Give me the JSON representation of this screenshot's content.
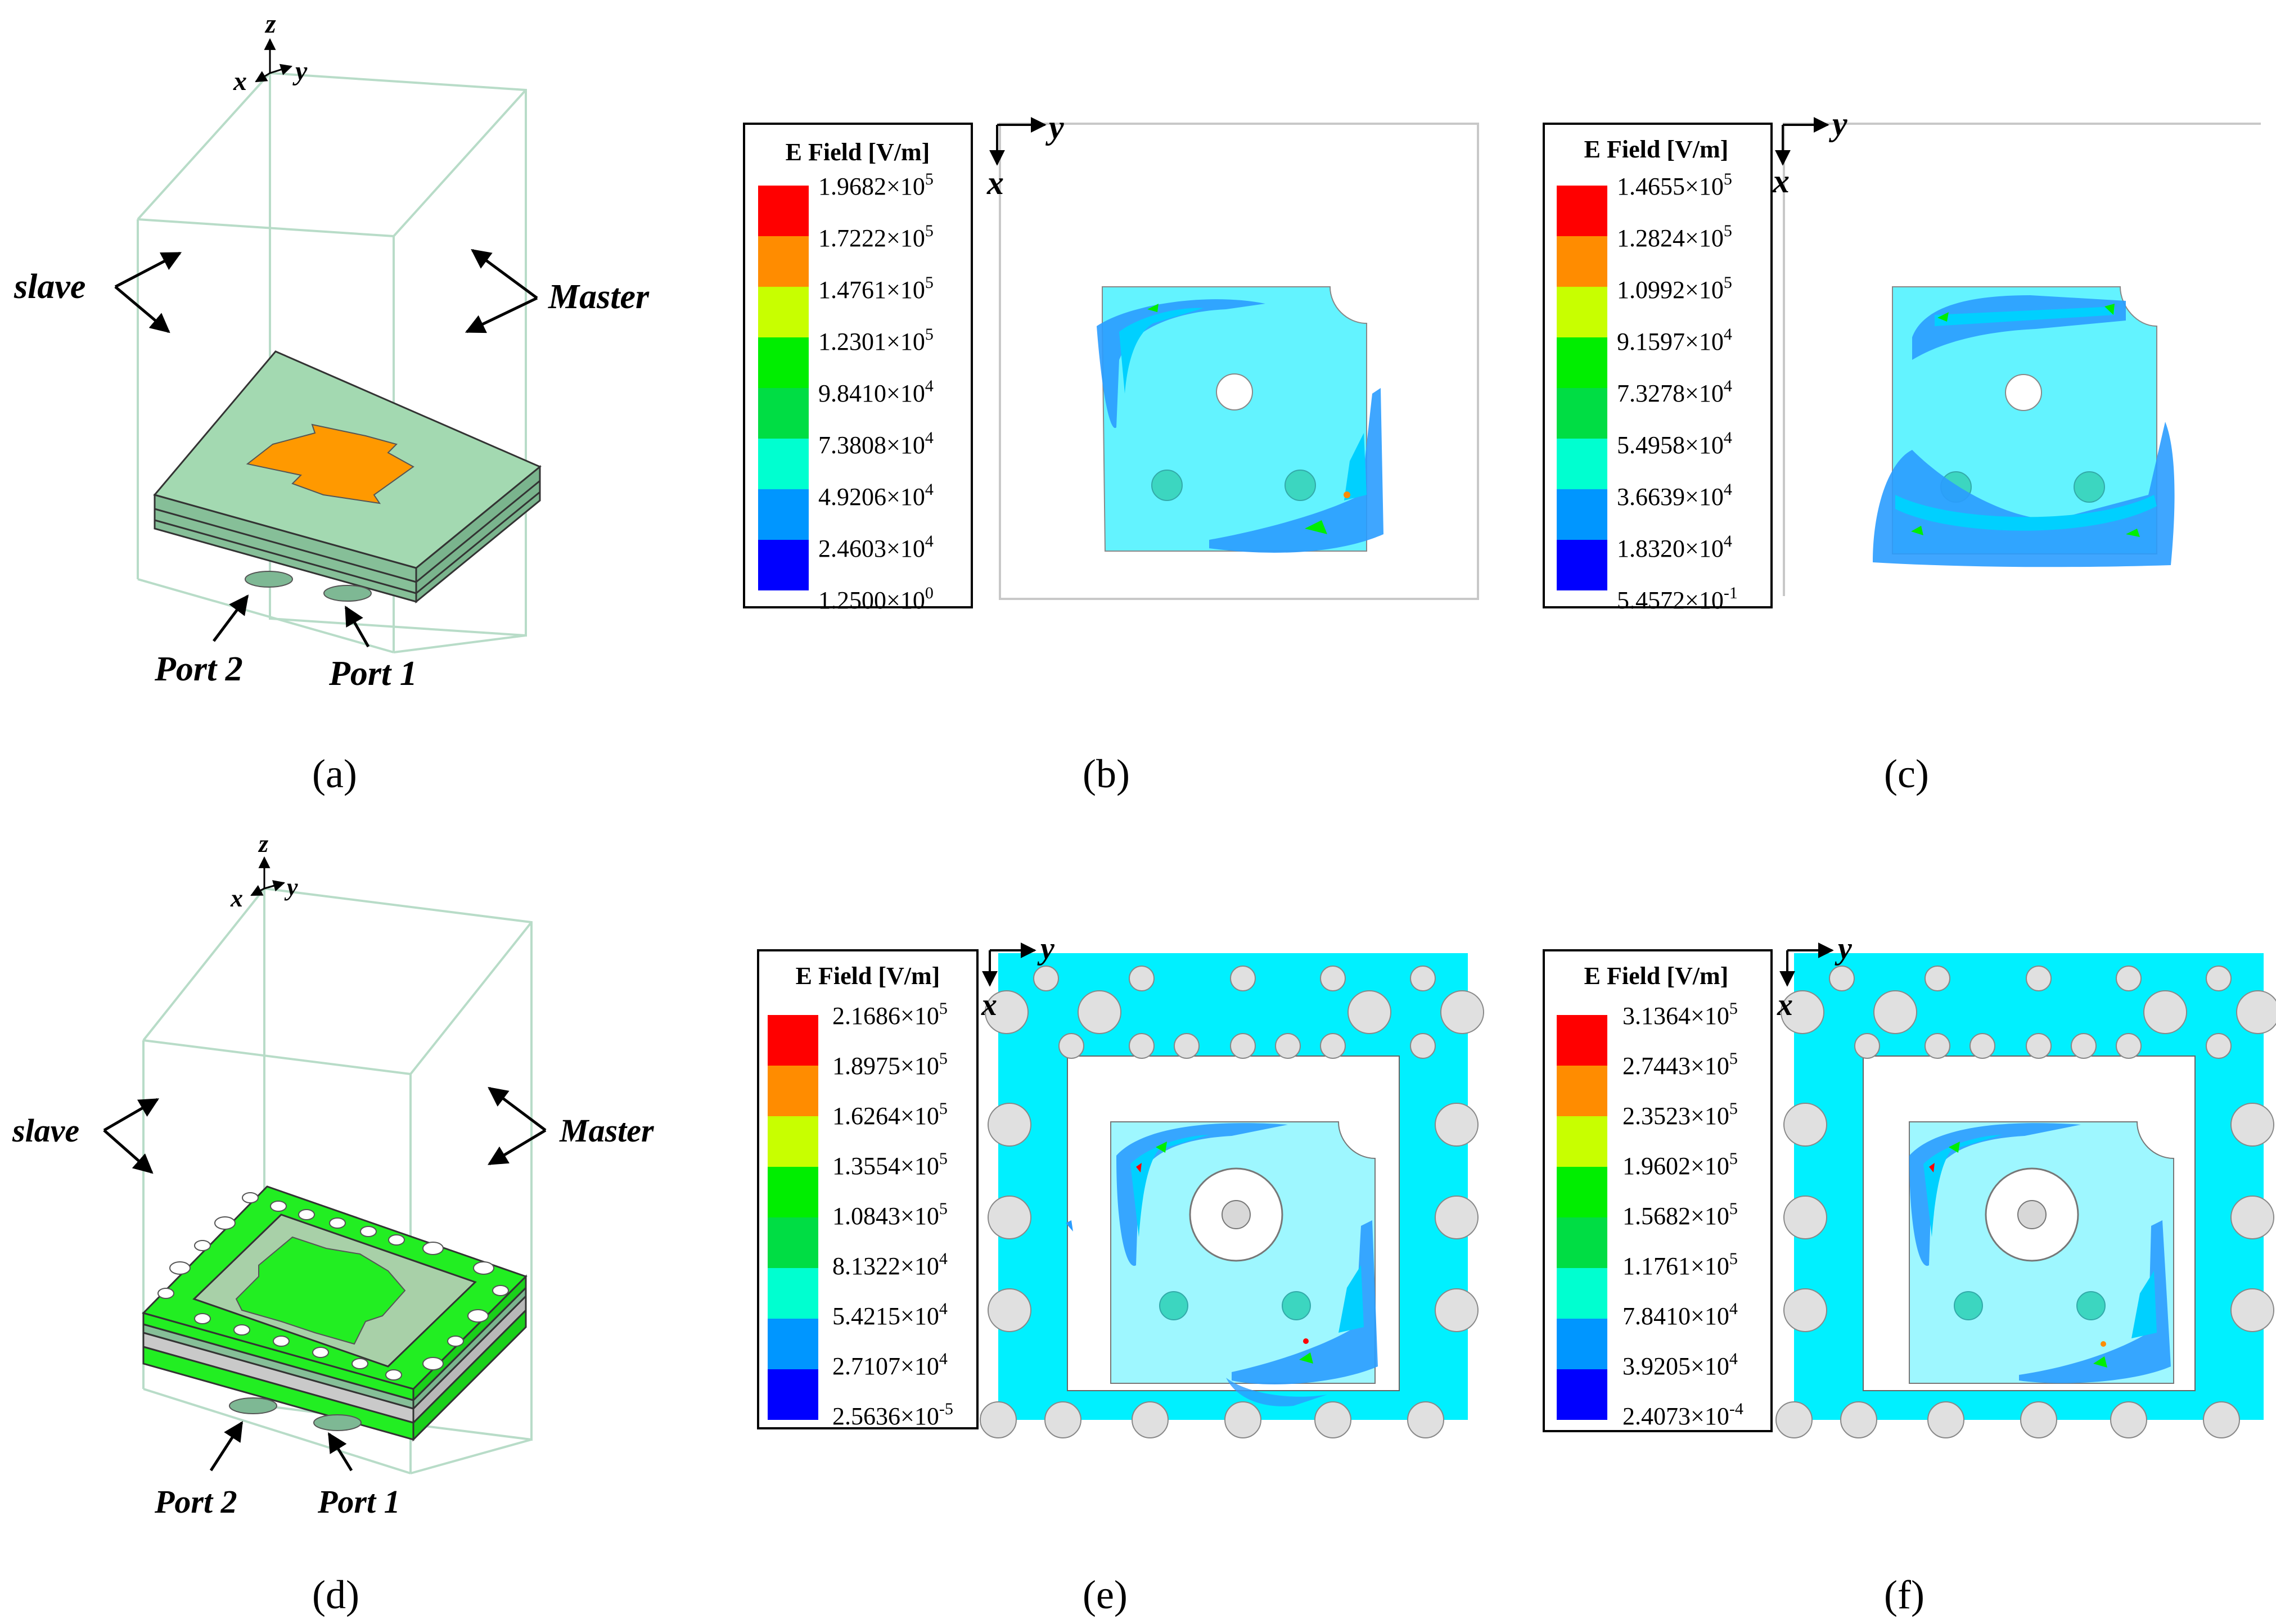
{
  "panels": {
    "a": {
      "caption": "(a)",
      "axes": {
        "x": "x",
        "y": "y",
        "z": "z"
      },
      "labels": {
        "slave": "slave",
        "master": "Master",
        "port1": "Port 1",
        "port2": "Port 2"
      }
    },
    "b": {
      "caption": "(b)",
      "axes": {
        "x": "x",
        "y": "y"
      },
      "legend": {
        "title": "E Field [V/m]",
        "entries": [
          {
            "mantissa": "1.9682×10",
            "exp": "5"
          },
          {
            "mantissa": "1.7222×10",
            "exp": "5"
          },
          {
            "mantissa": "1.4761×10",
            "exp": "5"
          },
          {
            "mantissa": "1.2301×10",
            "exp": "5"
          },
          {
            "mantissa": "9.8410×10",
            "exp": "4"
          },
          {
            "mantissa": "7.3808×10",
            "exp": "4"
          },
          {
            "mantissa": "4.9206×10",
            "exp": "4"
          },
          {
            "mantissa": "2.4603×10",
            "exp": "4"
          },
          {
            "mantissa": "1.2500×10",
            "exp": "0"
          }
        ]
      }
    },
    "c": {
      "caption": "(c)",
      "axes": {
        "x": "x",
        "y": "y"
      },
      "legend": {
        "title": "E Field [V/m]",
        "entries": [
          {
            "mantissa": "1.4655×10",
            "exp": "5"
          },
          {
            "mantissa": "1.2824×10",
            "exp": "5"
          },
          {
            "mantissa": "1.0992×10",
            "exp": "5"
          },
          {
            "mantissa": "9.1597×10",
            "exp": "4"
          },
          {
            "mantissa": "7.3278×10",
            "exp": "4"
          },
          {
            "mantissa": "5.4958×10",
            "exp": "4"
          },
          {
            "mantissa": "3.6639×10",
            "exp": "4"
          },
          {
            "mantissa": "1.8320×10",
            "exp": "4"
          },
          {
            "mantissa": "5.4572×10",
            "exp": "-1"
          }
        ]
      }
    },
    "d": {
      "caption": "(d)",
      "axes": {
        "x": "x",
        "y": "y",
        "z": "z"
      },
      "labels": {
        "slave": "slave",
        "master": "Master",
        "port1": "Port 1",
        "port2": "Port 2"
      }
    },
    "e": {
      "caption": "(e)",
      "axes": {
        "x": "x",
        "y": "y"
      },
      "legend": {
        "title": "E Field [V/m]",
        "entries": [
          {
            "mantissa": "2.1686×10",
            "exp": "5"
          },
          {
            "mantissa": "1.8975×10",
            "exp": "5"
          },
          {
            "mantissa": "1.6264×10",
            "exp": "5"
          },
          {
            "mantissa": "1.3554×10",
            "exp": "5"
          },
          {
            "mantissa": "1.0843×10",
            "exp": "5"
          },
          {
            "mantissa": "8.1322×10",
            "exp": "4"
          },
          {
            "mantissa": "5.4215×10",
            "exp": "4"
          },
          {
            "mantissa": "2.7107×10",
            "exp": "4"
          },
          {
            "mantissa": "2.5636×10",
            "exp": "-5"
          }
        ]
      }
    },
    "f": {
      "caption": "(f)",
      "axes": {
        "x": "x",
        "y": "y"
      },
      "legend": {
        "title": "E Field [V/m]",
        "entries": [
          {
            "mantissa": "3.1364×10",
            "exp": "5"
          },
          {
            "mantissa": "2.7443×10",
            "exp": "5"
          },
          {
            "mantissa": "2.3523×10",
            "exp": "5"
          },
          {
            "mantissa": "1.9602×10",
            "exp": "5"
          },
          {
            "mantissa": "1.5682×10",
            "exp": "5"
          },
          {
            "mantissa": "1.1761×10",
            "exp": "5"
          },
          {
            "mantissa": "7.8410×10",
            "exp": "4"
          },
          {
            "mantissa": "3.9205×10",
            "exp": "4"
          },
          {
            "mantissa": "2.4073×10",
            "exp": "-4"
          }
        ]
      }
    }
  },
  "colors": {
    "scale": [
      "#ff0000",
      "#ff8c00",
      "#c8ff00",
      "#00ee00",
      "#00dd44",
      "#00ffd0",
      "#0096ff",
      "#0000ff"
    ],
    "substrate_top": "#a3d9b1",
    "substrate_side": "#86bf98",
    "patch": "#ff9900",
    "ebg_green": "#22ee22",
    "ebg_ring": "#a8d0a8",
    "cyan_field": "#00f0ff",
    "light_cyan": "#9ef7ff",
    "hole": "#e0e0e0",
    "box_line": "#b8dcc8"
  }
}
